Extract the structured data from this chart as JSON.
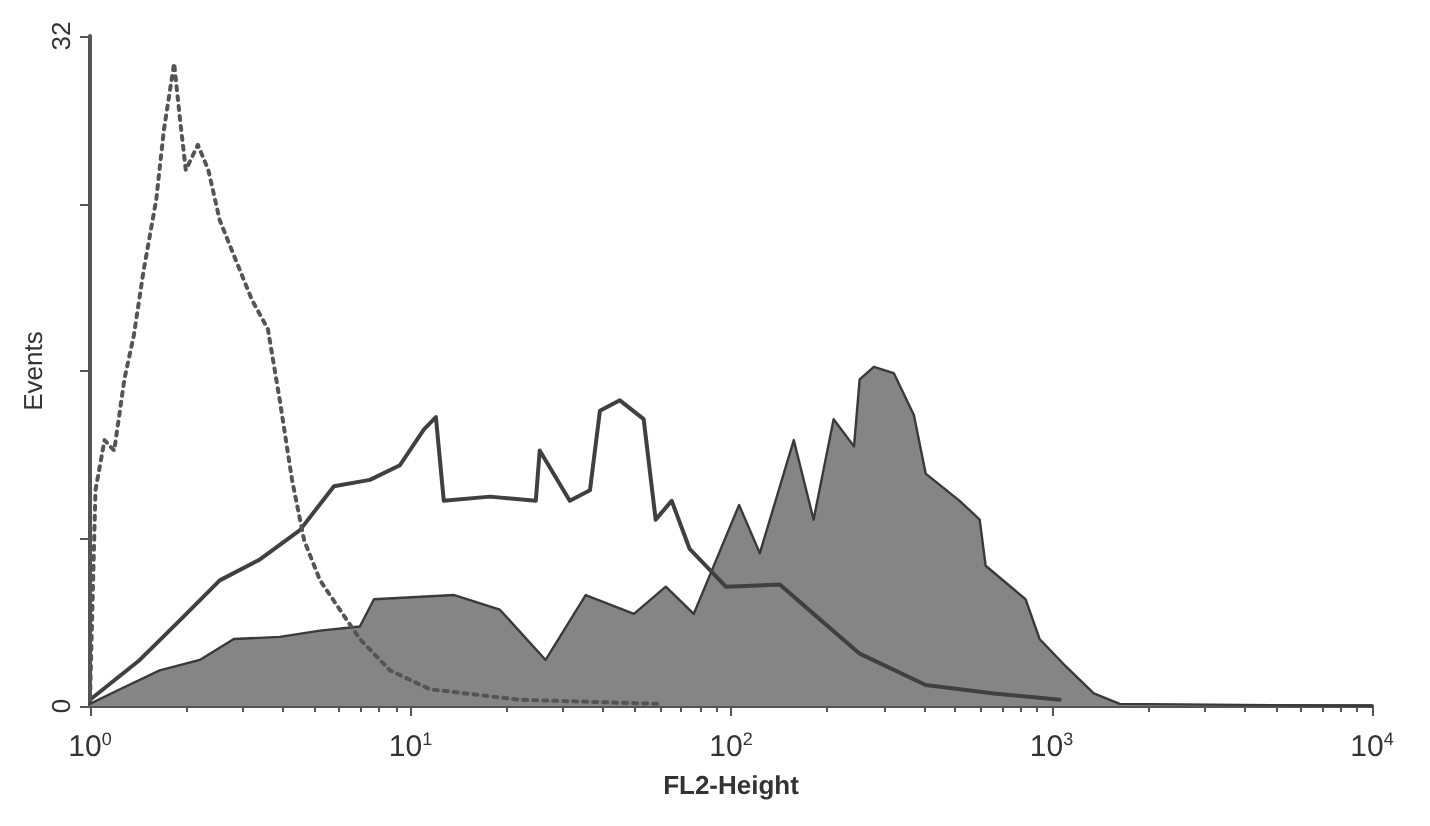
{
  "chart_data": {
    "type": "line",
    "xlabel": "FL2-Height",
    "ylabel": "Events",
    "log": "x",
    "marker": "none",
    "grid": false,
    "xlim": [
      1,
      10000
    ],
    "xticks": [
      {
        "value": 1,
        "label": "10$^{0}$"
      },
      {
        "value": 10,
        "label": "10$^{1}$"
      },
      {
        "value": 100,
        "label": "10$^{2}$"
      },
      {
        "value": 1000,
        "label": "10$^{3}$"
      },
      {
        "value": 10000,
        "label": "10$^{4}$"
      }
    ],
    "ylim": [
      0,
      32
    ],
    "yticks": [
      0,
      {
        "value": 8,
        "label": null
      },
      {
        "value": 16,
        "label": null
      },
      {
        "value": 24,
        "label": null
      },
      32
    ],
    "series": [
      {
        "type": "area",
        "color": "#858585",
        "x": [
          1.0,
          1.24,
          1.65,
          2.2,
          2.81,
          3.91,
          5.22,
          6.95,
          7.69,
          13.7,
          19.0,
          26.4,
          35.2,
          49.8,
          62.6,
          76.5,
          106,
          123,
          157,
          181,
          209,
          242,
          252,
          279,
          322,
          372,
          405,
          517,
          597,
          623,
          830,
          918,
          1107,
          1355,
          1633,
          10000
        ],
        "values": [
          0.1,
          0.8,
          1.7,
          2.2,
          3.2,
          3.3,
          3.6,
          3.8,
          5.1,
          5.3,
          4.6,
          2.2,
          5.3,
          4.4,
          5.7,
          4.4,
          9.6,
          7.3,
          12.7,
          8.9,
          13.7,
          12.4,
          15.6,
          16.2,
          15.9,
          13.9,
          11.1,
          9.8,
          8.9,
          6.7,
          5.1,
          3.2,
          1.9,
          0.6,
          0.1,
          0
        ]
      },
      {
        "type": "line",
        "color": "#404040",
        "line_style": "solid",
        "x": [
          1.0,
          1.43,
          1.91,
          2.54,
          3.39,
          4.52,
          5.77,
          7.47,
          9.27,
          11.0,
          12.0,
          12.7,
          17.7,
          24.6,
          25.3,
          31.4,
          36.3,
          39.0,
          45.0,
          53.4,
          58.2,
          65.3,
          74.3,
          96.4,
          142,
          181,
          252,
          405,
          661,
          1060
        ],
        "values": [
          0.3,
          2.2,
          4.1,
          6.0,
          7.0,
          8.4,
          10.5,
          10.8,
          11.5,
          13.2,
          13.8,
          9.8,
          10.0,
          9.8,
          12.2,
          9.8,
          10.3,
          14.1,
          14.6,
          13.7,
          8.9,
          9.8,
          7.5,
          5.7,
          5.8,
          4.4,
          2.5,
          1.0,
          0.6,
          0.3
        ]
      },
      {
        "type": "line",
        "color": "#555555",
        "line_style": "dotted",
        "x": [
          1.0,
          1.04,
          1.11,
          1.19,
          1.28,
          1.37,
          1.47,
          1.61,
          1.7,
          1.83,
          1.91,
          1.99,
          2.17,
          2.34,
          2.54,
          2.85,
          3.2,
          3.59,
          3.91,
          4.27,
          4.66,
          5.22,
          6.02,
          6.95,
          8.63,
          11.5,
          21.9,
          60
        ],
        "values": [
          0.3,
          10.3,
          12.7,
          12.2,
          15.6,
          17.7,
          20.8,
          24.2,
          27.5,
          30.7,
          28.0,
          25.6,
          26.8,
          25.6,
          23.2,
          21.3,
          19.4,
          18.0,
          14.6,
          10.8,
          7.9,
          6.0,
          4.6,
          3.2,
          1.7,
          0.8,
          0.3,
          0.1
        ]
      }
    ]
  }
}
